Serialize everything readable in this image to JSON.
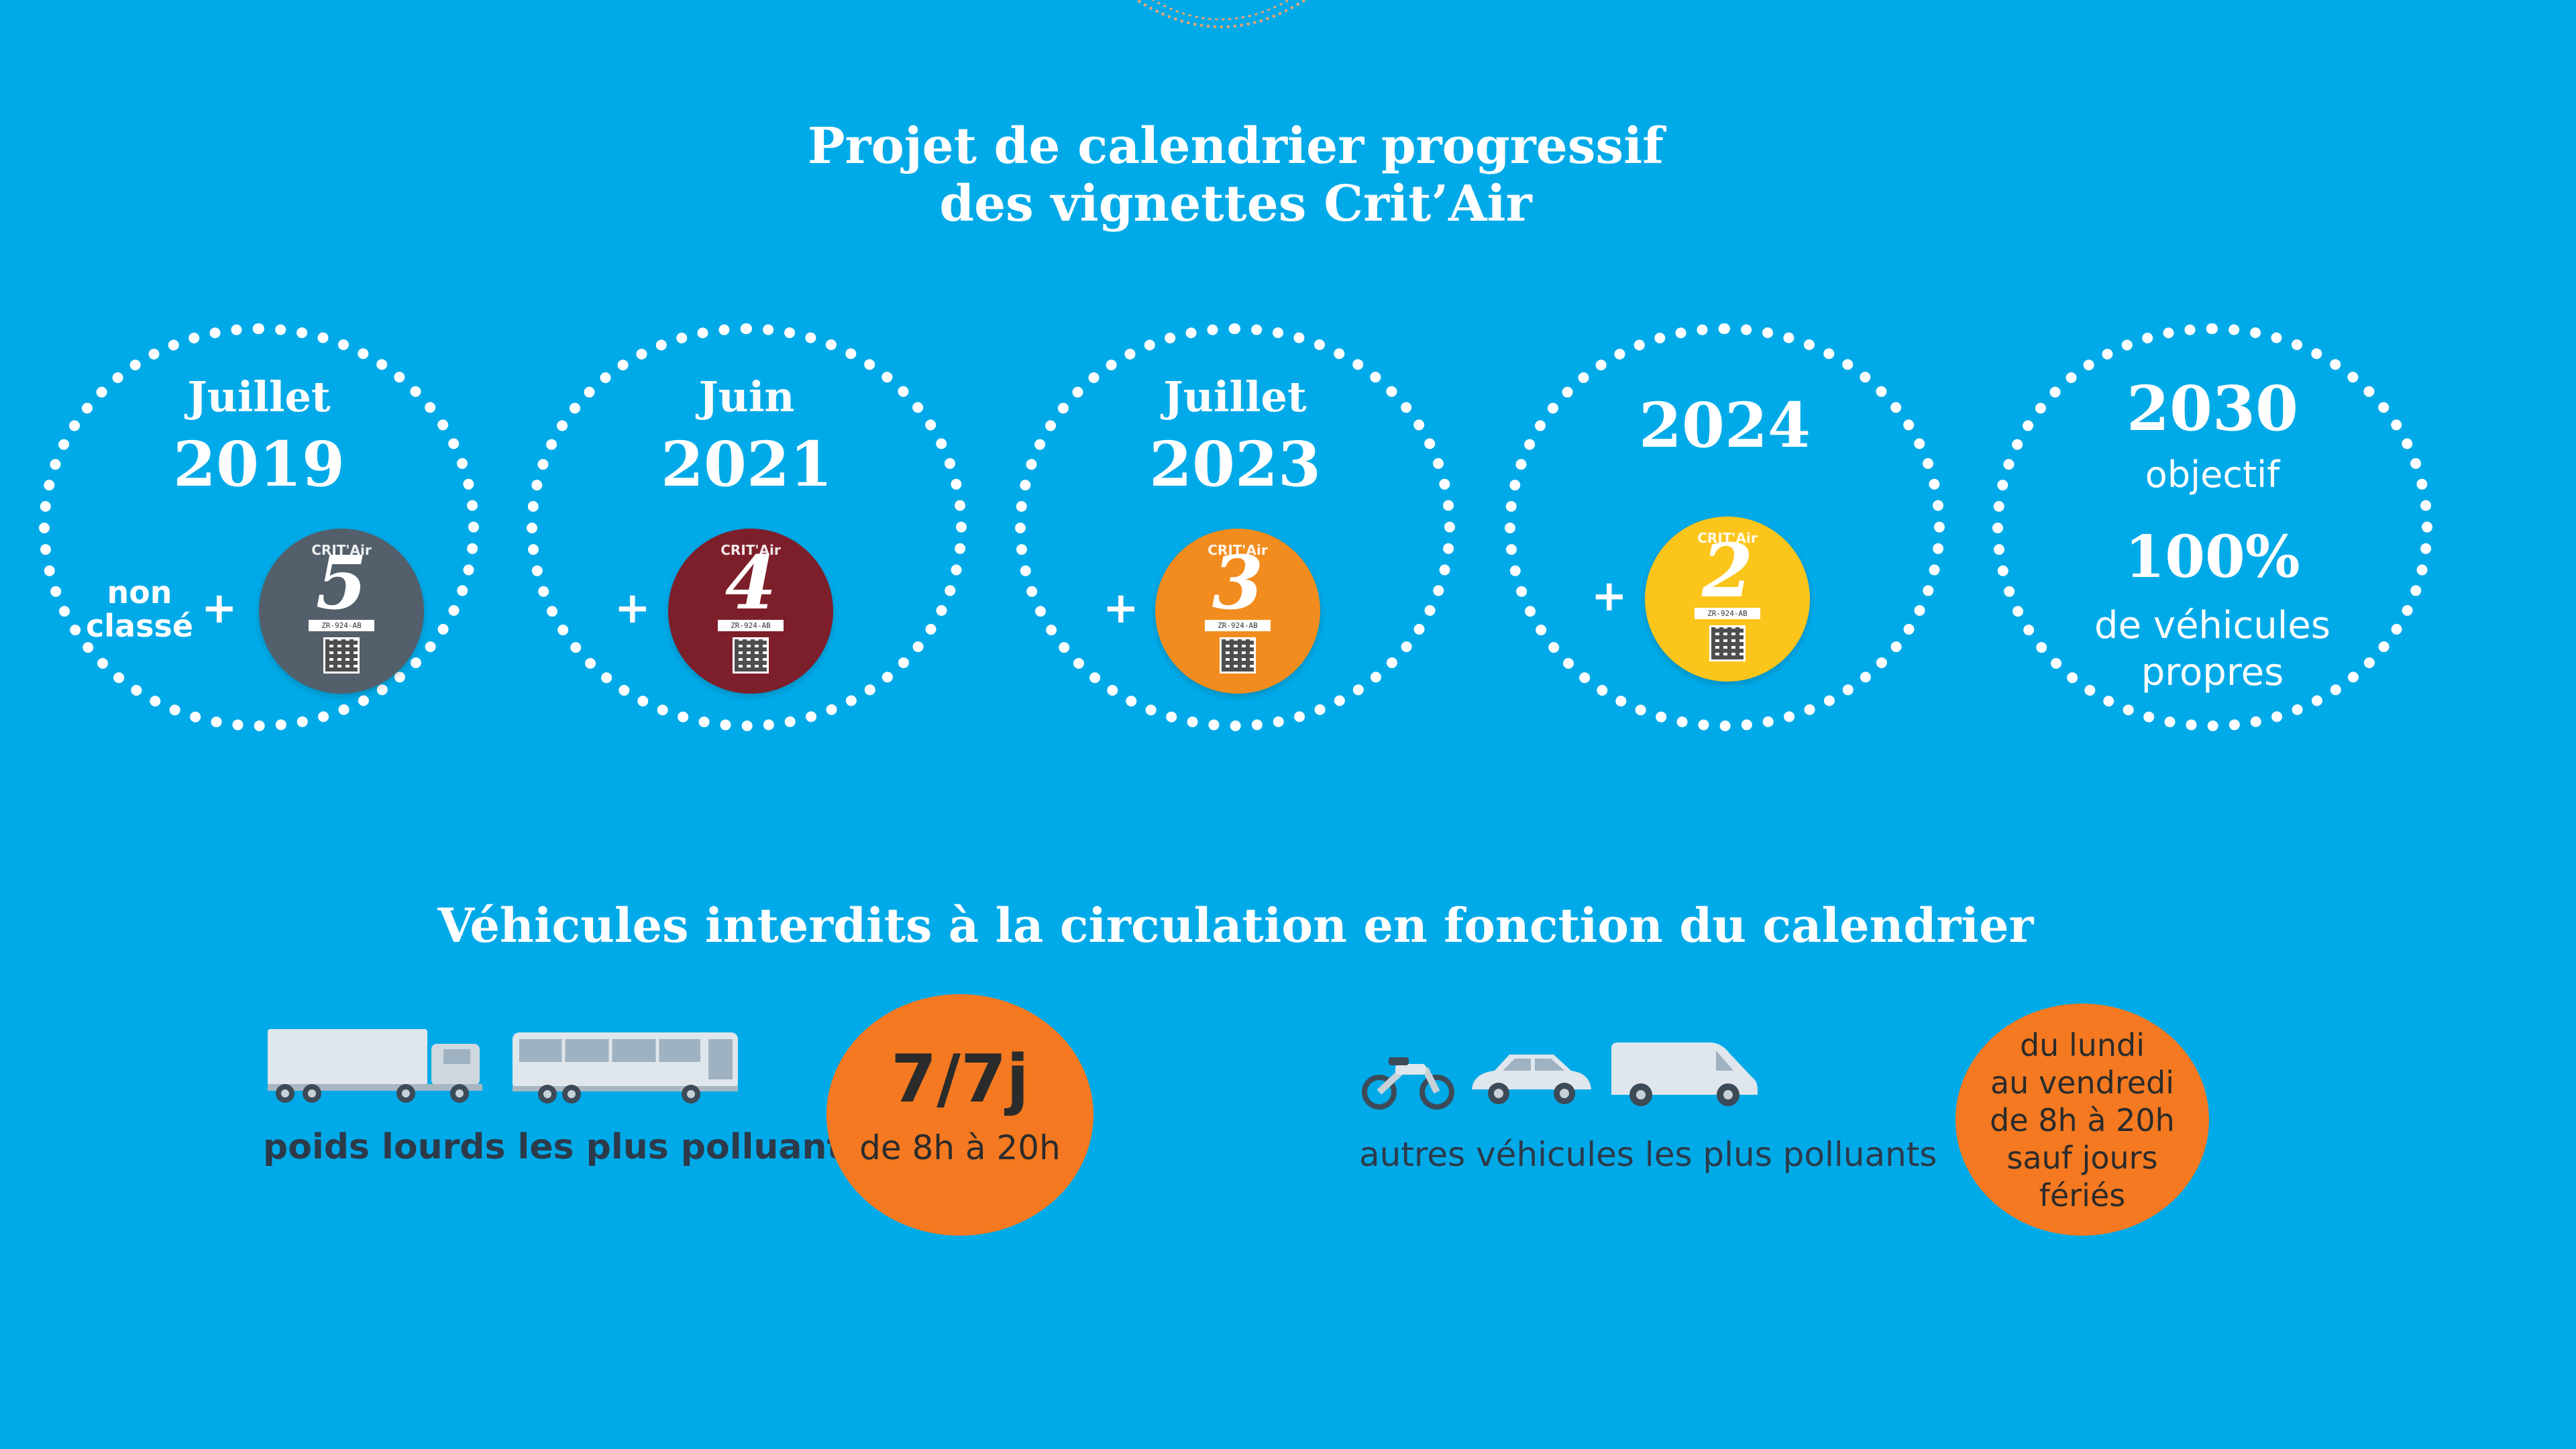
{
  "title": {
    "line1": "Projet de calendrier progressif",
    "line2": "des vignettes Crit’Air"
  },
  "timeline": [
    {
      "month": "Juillet",
      "year": "2019",
      "extra": "non classé",
      "plus": "+",
      "vignette_number": "5",
      "vignette_color": "#535f6b"
    },
    {
      "month": "Juin",
      "year": "2021",
      "plus": "+",
      "vignette_number": "4",
      "vignette_color": "#7d1f2a"
    },
    {
      "month": "Juillet",
      "year": "2023",
      "plus": "+",
      "vignette_number": "3",
      "vignette_color": "#f28c1e"
    },
    {
      "month": "",
      "year": "2024",
      "plus": "+",
      "vignette_number": "2",
      "vignette_color": "#fcc51c"
    },
    {
      "year": "2030",
      "label": "objectif",
      "percent": "100%",
      "desc_line1": "de véhicules",
      "desc_line2": "propres"
    }
  ],
  "vignette_brand": "CRIT'Air",
  "vignette_plate": "ZR-924-AB",
  "section_title": "Véhicules interdits à la circulation en fonction du calendrier",
  "heavy": {
    "caption": "poids lourds les plus polluants",
    "badge_big": "7/7j",
    "badge_small": "de 8h à 20h",
    "icons": [
      "truck-icon",
      "bus-icon"
    ]
  },
  "others": {
    "caption": "autres véhicules les plus polluants",
    "badge_lines": [
      "du lundi",
      "au vendredi",
      "de 8h à 20h",
      "sauf jours",
      "fériés"
    ],
    "icons": [
      "motorcycle-icon",
      "car-icon",
      "van-icon"
    ]
  },
  "colors": {
    "background": "#00aae8",
    "accent_orange": "#f47920",
    "text_dark": "#2c3a4a"
  }
}
